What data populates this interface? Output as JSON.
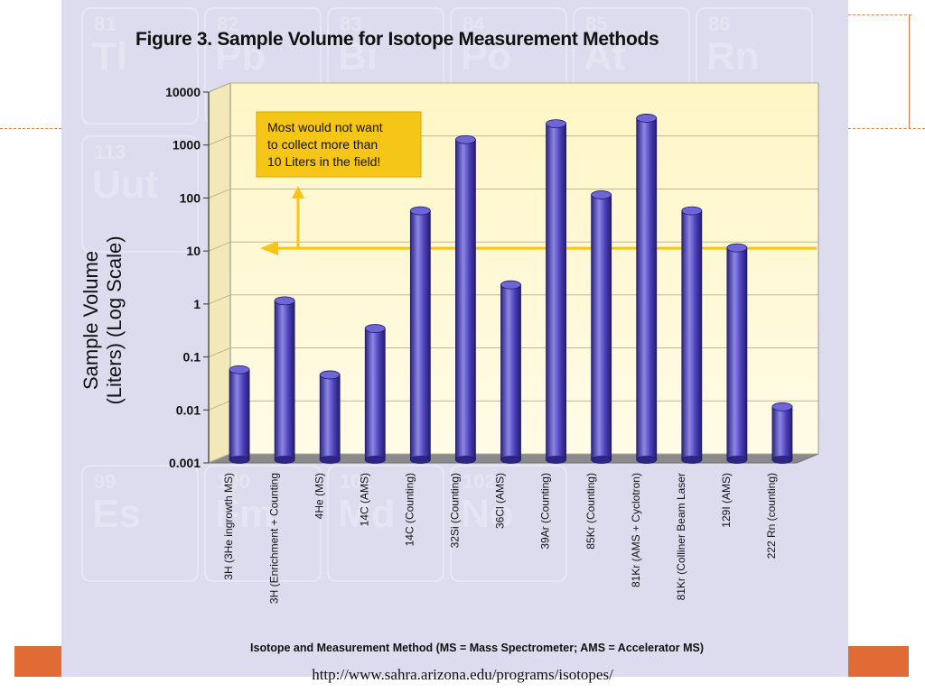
{
  "figure": {
    "title": "Figure 3. Sample Volume for Isotope Measurement Methods",
    "source_url": "http://www.sahra.arizona.edu/programs/isotopes/"
  },
  "background_elements": [
    {
      "number": "81",
      "symbol": "Tl"
    },
    {
      "number": "82",
      "symbol": "Pb"
    },
    {
      "number": "83",
      "symbol": "Bi"
    },
    {
      "number": "84",
      "symbol": "Po"
    },
    {
      "number": "85",
      "symbol": "At"
    },
    {
      "number": "86",
      "symbol": "Rn"
    },
    {
      "number": "113",
      "symbol": "Uut"
    },
    {
      "number": "99",
      "symbol": "Es"
    },
    {
      "number": "100",
      "symbol": "Fm"
    },
    {
      "number": "101",
      "symbol": "Md"
    },
    {
      "number": "102",
      "symbol": "No"
    }
  ],
  "chart_data": {
    "type": "bar",
    "title": "Figure 3. Sample Volume for Isotope Measurement Methods",
    "ylabel_lines": [
      "Sample Volume",
      "(Liters) (Log Scale)"
    ],
    "xlabel": "Isotope and Measurement Method (MS = Mass Spectrometer; AMS = Accelerator MS)",
    "y_scale": "log",
    "ylim": [
      0.001,
      10000
    ],
    "y_ticks": [
      "10000",
      "1000",
      "100",
      "10",
      "1",
      "0.1",
      "0.01",
      "0.001"
    ],
    "categories": [
      "3H (3He ingrowth MS)",
      "3H (Enrichment + Counting",
      "4He (MS)",
      "14C (AMS)",
      "14C (Counting)",
      "32Si (Counting)",
      "36Cl (AMS)",
      "39Ar (Counting)",
      "85Kr (Counting)",
      "81Kr (AMS + Cyclotron)",
      "81Kr (Colliner Beam Laser",
      "129I (AMS)",
      "222 Rn (counting)"
    ],
    "values": [
      0.05,
      1,
      0.04,
      0.3,
      50,
      1100,
      2,
      2200,
      100,
      2800,
      50,
      10,
      0.01
    ],
    "annotation": {
      "lines": [
        "Most would not want",
        "to collect more than",
        "10 Liters in the field!"
      ],
      "threshold": 10
    },
    "grid": true,
    "colors": {
      "bar": "#4a3fb8",
      "bar_highlight": "#8d86e6",
      "plot_background": "#fff6c8",
      "annotation_box": "#f5c518",
      "threshold_line": "#f5c518",
      "floor": "#7d7d7d"
    }
  }
}
